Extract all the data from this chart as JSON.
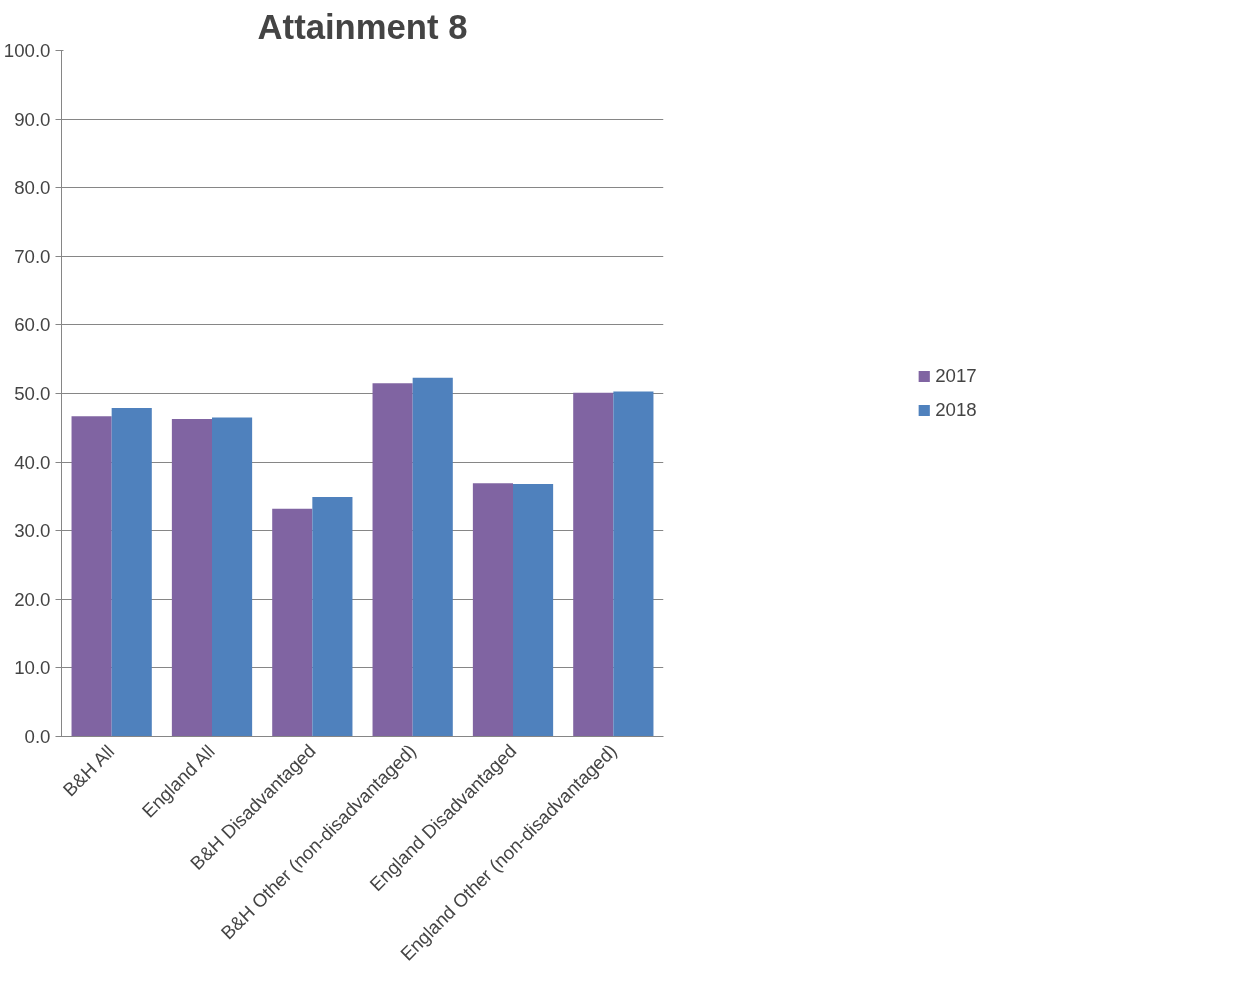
{
  "chart_data": {
    "type": "bar",
    "title": "Attainment 8",
    "categories": [
      "B&H All",
      "England All",
      "B&H Disadvantaged",
      "B&H Other (non-disadvantaged)",
      "England Disadvantaged",
      "England Other (non-disadvantaged)"
    ],
    "series": [
      {
        "name": "2017",
        "color": "#8064a2",
        "values": [
          46.7,
          46.3,
          33.2,
          51.5,
          36.9,
          50.1
        ]
      },
      {
        "name": "2018",
        "color": "#4f81bd",
        "values": [
          47.9,
          46.5,
          34.9,
          52.3,
          36.8,
          50.3
        ]
      }
    ],
    "ylim": [
      0,
      100
    ],
    "yticks": [
      {
        "value": 0,
        "label": "0.0"
      },
      {
        "value": 10,
        "label": "10.0"
      },
      {
        "value": 20,
        "label": "20.0"
      },
      {
        "value": 30,
        "label": "30.0"
      },
      {
        "value": 40,
        "label": "40.0"
      },
      {
        "value": 50,
        "label": "50.0"
      },
      {
        "value": 60,
        "label": "60.0"
      },
      {
        "value": 70,
        "label": "70.0"
      },
      {
        "value": 80,
        "label": "80.0"
      },
      {
        "value": 90,
        "label": "90.0"
      },
      {
        "value": 100,
        "label": "100.0"
      }
    ],
    "grid": "y",
    "legend": "right"
  }
}
